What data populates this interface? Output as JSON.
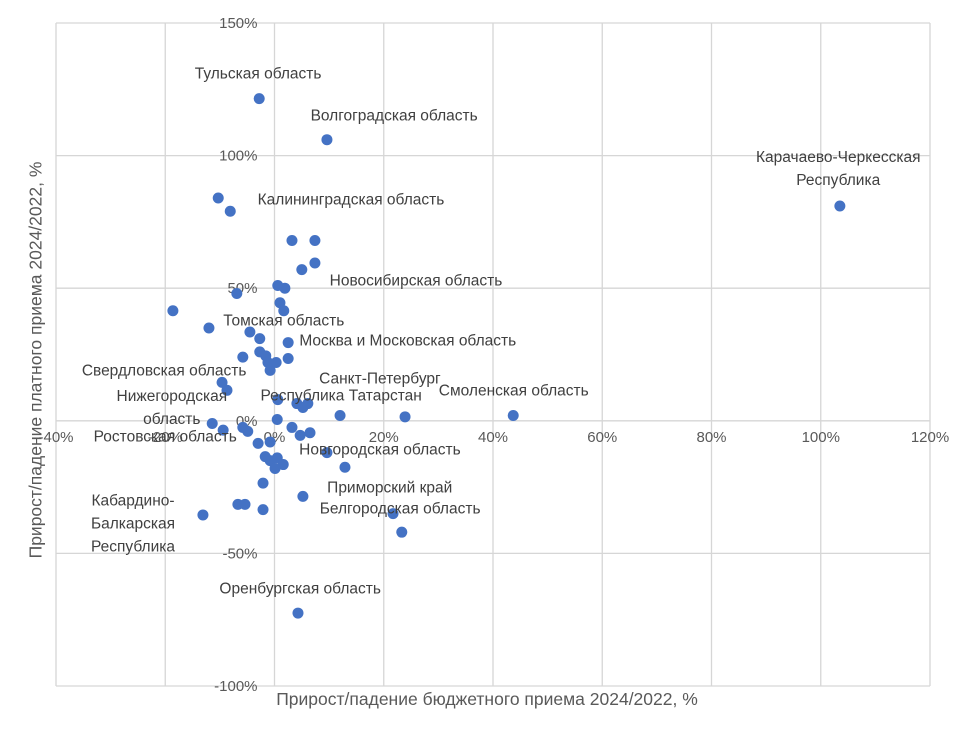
{
  "chart_data": {
    "type": "scatter",
    "title": "",
    "xlabel": "Прирост/падение бюджетного приема 2024/2022, %",
    "ylabel": "Прирост/падение платного приема 2024/2022, %",
    "xlim": [
      -40,
      120
    ],
    "ylim": [
      -100,
      150
    ],
    "grid": true,
    "legend": "none",
    "marker_color": "#4472C4",
    "grid_color": "#D6D6D6",
    "tick_color": "#595959",
    "label_color": "#404040",
    "x_ticks": {
      "values": [
        -40,
        -20,
        0,
        20,
        40,
        60,
        80,
        100,
        120
      ],
      "labels": [
        "-40%",
        "-20%",
        "0%",
        "20%",
        "40%",
        "60%",
        "80%",
        "100%",
        "120%"
      ]
    },
    "y_ticks": {
      "values": [
        150,
        100,
        50,
        0,
        -50,
        -100
      ],
      "labels": [
        "150%",
        "100%",
        "50%",
        "0%",
        "-50%",
        "-100%"
      ]
    },
    "points": [
      [
        -2.8,
        121.5
      ],
      [
        9.6,
        106
      ],
      [
        103.5,
        81
      ],
      [
        -10.3,
        84
      ],
      [
        -8.1,
        79
      ],
      [
        3.2,
        68
      ],
      [
        7.4,
        68
      ],
      [
        5.0,
        57
      ],
      [
        7.4,
        59.5
      ],
      [
        0.6,
        51
      ],
      [
        1.9,
        50
      ],
      [
        -6.9,
        48
      ],
      [
        -18.6,
        41.5
      ],
      [
        1.0,
        44.5
      ],
      [
        1.7,
        41.5
      ],
      [
        -12.0,
        35
      ],
      [
        -4.5,
        33.5
      ],
      [
        -2.7,
        31
      ],
      [
        2.5,
        29.5
      ],
      [
        -5.8,
        24
      ],
      [
        -2.7,
        26
      ],
      [
        -1.6,
        24.5
      ],
      [
        -1.2,
        22
      ],
      [
        0.3,
        22
      ],
      [
        -0.8,
        19
      ],
      [
        2.5,
        23.5
      ],
      [
        -9.6,
        14.5
      ],
      [
        -8.7,
        11.5
      ],
      [
        4.1,
        6.5
      ],
      [
        5.2,
        5
      ],
      [
        0.6,
        8
      ],
      [
        6.1,
        6.5
      ],
      [
        43.7,
        2
      ],
      [
        0.5,
        0.5
      ],
      [
        12.0,
        2
      ],
      [
        23.9,
        1.5
      ],
      [
        -11.4,
        -1
      ],
      [
        -9.4,
        -3.5
      ],
      [
        -5.8,
        -2.5
      ],
      [
        -4.9,
        -4
      ],
      [
        3.2,
        -2.5
      ],
      [
        4.7,
        -5.5
      ],
      [
        6.5,
        -4.5
      ],
      [
        -3.0,
        -8.5
      ],
      [
        -0.8,
        -8
      ],
      [
        -1.7,
        -13.5
      ],
      [
        -0.8,
        -15
      ],
      [
        0.5,
        -14
      ],
      [
        1.6,
        -16.5
      ],
      [
        0.1,
        -18
      ],
      [
        9.6,
        -12
      ],
      [
        12.9,
        -17.5
      ],
      [
        -2.1,
        -23.5
      ],
      [
        5.2,
        -28.5
      ],
      [
        -13.1,
        -35.5
      ],
      [
        -6.7,
        -31.5
      ],
      [
        -5.4,
        -31.5
      ],
      [
        -2.1,
        -33.5
      ],
      [
        21.7,
        -35
      ],
      [
        23.3,
        -42
      ],
      [
        4.3,
        -72.5
      ]
    ],
    "annotations": [
      {
        "lines": [
          "Тульская область"
        ],
        "x": -3.0,
        "y": 131.1
      },
      {
        "lines": [
          "Волгоградская область"
        ],
        "x": 21.9,
        "y": 115.3
      },
      {
        "lines": [
          "Карачаево-Черкесская",
          "Республика"
        ],
        "x": 103.2,
        "y": 95.3
      },
      {
        "lines": [
          "Калининградская область"
        ],
        "x": 14.0,
        "y": 83.6
      },
      {
        "lines": [
          "Новосибирская область"
        ],
        "x": 25.9,
        "y": 53.1
      },
      {
        "lines": [
          "Томская область"
        ],
        "x": 1.7,
        "y": 38.0
      },
      {
        "lines": [
          "Москва и Московская область"
        ],
        "x": 24.4,
        "y": 30.5
      },
      {
        "lines": [
          "Санкт-Петербург"
        ],
        "x": 19.3,
        "y": 16.1
      },
      {
        "lines": [
          "Республика Татарстан"
        ],
        "x": 12.2,
        "y": 9.7
      },
      {
        "lines": [
          "Смоленская область"
        ],
        "x": 43.8,
        "y": 11.6
      },
      {
        "lines": [
          "Свердловская область"
        ],
        "x": -20.2,
        "y": 19.2
      },
      {
        "lines": [
          "Нижегородская",
          "область"
        ],
        "x": -18.8,
        "y": 5.2
      },
      {
        "lines": [
          "Ростовская область"
        ],
        "x": -20.0,
        "y": -5.7
      },
      {
        "lines": [
          "Новгородская область"
        ],
        "x": 19.3,
        "y": -10.6
      },
      {
        "lines": [
          "Приморский край"
        ],
        "x": 21.1,
        "y": -25.0
      },
      {
        "lines": [
          "Белгородская область"
        ],
        "x": 23.0,
        "y": -32.9
      },
      {
        "lines": [
          "Кабардино-",
          "Балкарская",
          "Республика"
        ],
        "x": -25.9,
        "y": -38.5
      },
      {
        "lines": [
          "Оренбургская область"
        ],
        "x": 4.7,
        "y": -63.0
      }
    ]
  }
}
